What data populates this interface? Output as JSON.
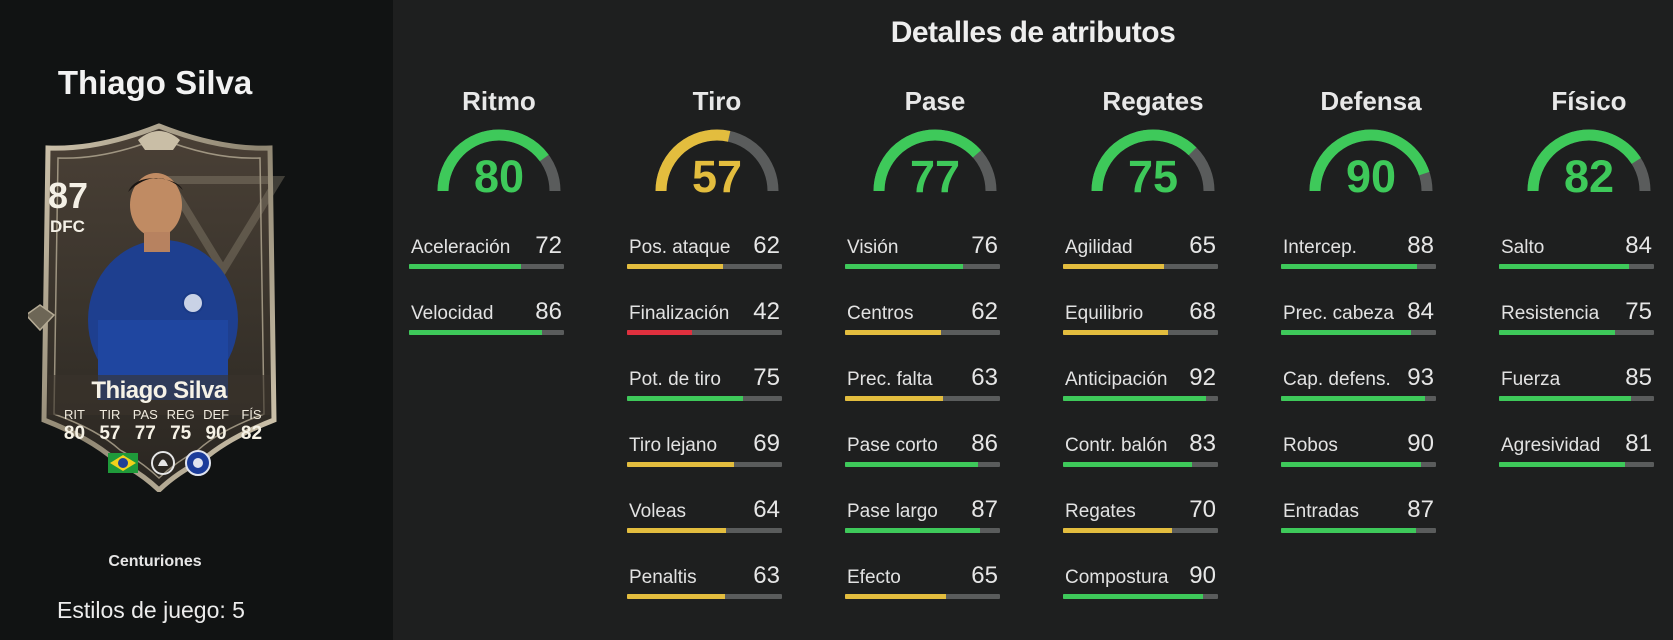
{
  "player": {
    "name": "Thiago Silva",
    "card_name": "Thiago Silva",
    "rating": "87",
    "position": "DFC",
    "card_stats": [
      {
        "label": "RIT",
        "value": "80"
      },
      {
        "label": "TIR",
        "value": "57"
      },
      {
        "label": "PAS",
        "value": "77"
      },
      {
        "label": "REG",
        "value": "75"
      },
      {
        "label": "DEF",
        "value": "90"
      },
      {
        "label": "FÍS",
        "value": "82"
      }
    ],
    "card_set": "Centuriones",
    "play_styles": "Estilos de juego: 5"
  },
  "section_title": "Detalles de atributos",
  "colors": {
    "green": "#3ec95a",
    "yellow": "#e3bd3e",
    "red": "#e0303e",
    "track": "#5a5c5c",
    "background": "#1e1f1f",
    "left_panel": "#111313"
  },
  "categories": [
    {
      "key": "ritmo",
      "title": "Ritmo",
      "value": "80",
      "color": "green",
      "attributes": [
        {
          "name": "Aceleración",
          "value": "72",
          "color": "green"
        },
        {
          "name": "Velocidad",
          "value": "86",
          "color": "green"
        }
      ]
    },
    {
      "key": "tiro",
      "title": "Tiro",
      "value": "57",
      "color": "yellow",
      "attributes": [
        {
          "name": "Pos. ataque",
          "value": "62",
          "color": "yellow"
        },
        {
          "name": "Finalización",
          "value": "42",
          "color": "red"
        },
        {
          "name": "Pot. de tiro",
          "value": "75",
          "color": "green"
        },
        {
          "name": "Tiro lejano",
          "value": "69",
          "color": "yellow"
        },
        {
          "name": "Voleas",
          "value": "64",
          "color": "yellow"
        },
        {
          "name": "Penaltis",
          "value": "63",
          "color": "yellow"
        }
      ]
    },
    {
      "key": "pase",
      "title": "Pase",
      "value": "77",
      "color": "green",
      "attributes": [
        {
          "name": "Visión",
          "value": "76",
          "color": "green"
        },
        {
          "name": "Centros",
          "value": "62",
          "color": "yellow"
        },
        {
          "name": "Prec. falta",
          "value": "63",
          "color": "yellow"
        },
        {
          "name": "Pase corto",
          "value": "86",
          "color": "green"
        },
        {
          "name": "Pase largo",
          "value": "87",
          "color": "green"
        },
        {
          "name": "Efecto",
          "value": "65",
          "color": "yellow"
        }
      ]
    },
    {
      "key": "regates",
      "title": "Regates",
      "value": "75",
      "color": "green",
      "attributes": [
        {
          "name": "Agilidad",
          "value": "65",
          "color": "yellow"
        },
        {
          "name": "Equilibrio",
          "value": "68",
          "color": "yellow"
        },
        {
          "name": "Anticipación",
          "value": "92",
          "color": "green"
        },
        {
          "name": "Contr. balón",
          "value": "83",
          "color": "green"
        },
        {
          "name": "Regates",
          "value": "70",
          "color": "yellow"
        },
        {
          "name": "Compostura",
          "value": "90",
          "color": "green"
        }
      ]
    },
    {
      "key": "defensa",
      "title": "Defensa",
      "value": "90",
      "color": "green",
      "attributes": [
        {
          "name": "Intercep.",
          "value": "88",
          "color": "green"
        },
        {
          "name": "Prec. cabeza",
          "value": "84",
          "color": "green"
        },
        {
          "name": "Cap. defens.",
          "value": "93",
          "color": "green"
        },
        {
          "name": "Robos",
          "value": "90",
          "color": "green"
        },
        {
          "name": "Entradas",
          "value": "87",
          "color": "green"
        }
      ]
    },
    {
      "key": "fisico",
      "title": "Físico",
      "value": "82",
      "color": "green",
      "attributes": [
        {
          "name": "Salto",
          "value": "84",
          "color": "green"
        },
        {
          "name": "Resistencia",
          "value": "75",
          "color": "green"
        },
        {
          "name": "Fuerza",
          "value": "85",
          "color": "green"
        },
        {
          "name": "Agresividad",
          "value": "81",
          "color": "green"
        }
      ]
    }
  ]
}
